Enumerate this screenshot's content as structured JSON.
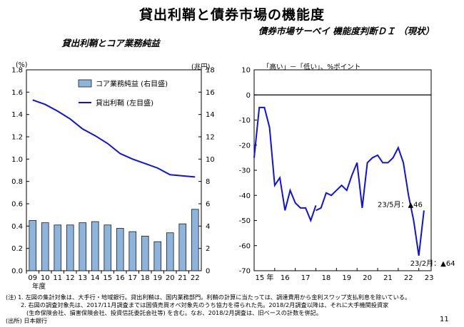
{
  "page": {
    "title": "貸出利鞘と債券市場の機能度",
    "page_number": "11",
    "notes": [
      "(注) 1. 左図の集計対象は、大手行・地域銀行。貸出利鞘は、国内業務部門。利鞘の計算に当たっては、調達費用から金利スワップ支払利息を除いている。",
      "2. 右図の調査対象先は、2017/11月調査までは国債売買オペ対象先のうち協力を得られた先。2018/2月調査以降は、それに大手機関投資家",
      "(生命保険会社、損害保険会社、投資信託委託会社等) を含む。なお、2018/2月調査は、旧ベースの計数を併記。",
      "(出所) 日本銀行"
    ]
  },
  "chart_data": [
    {
      "type": "bar+line",
      "title": "貸出利鞘とコア業務純益",
      "left_unit": "(%)",
      "right_unit": "(兆円)",
      "xlabel": "年度",
      "categories": [
        "09",
        "10",
        "11",
        "12",
        "13",
        "14",
        "15",
        "16",
        "17",
        "18",
        "19",
        "20",
        "21",
        "22"
      ],
      "yticks_left": [
        "0.0",
        "0.2",
        "0.4",
        "0.6",
        "0.8",
        "1.0",
        "1.2",
        "1.4",
        "1.6",
        "1.8"
      ],
      "yticks_right": [
        "0",
        "2",
        "4",
        "6",
        "8",
        "10",
        "12",
        "14",
        "16",
        "18"
      ],
      "ylim_left": [
        0,
        1.8
      ],
      "ylim_right": [
        0,
        18
      ],
      "legend": {
        "bar": "コア業務純益 (右目盛)",
        "line": "貸出利鞘 (左目盛)"
      },
      "series": [
        {
          "name": "コア業務純益 (右目盛)",
          "axis": "right",
          "kind": "bar",
          "color": "#8db4dc",
          "values": [
            4.5,
            4.3,
            4.1,
            4.1,
            4.3,
            4.4,
            4.1,
            3.8,
            3.5,
            3.1,
            2.6,
            3.4,
            4.2,
            5.5
          ]
        },
        {
          "name": "貸出利鞘 (左目盛)",
          "axis": "left",
          "kind": "line",
          "color": "#1010e6",
          "values": [
            1.53,
            1.49,
            1.43,
            1.36,
            1.27,
            1.21,
            1.14,
            1.05,
            1.0,
            0.96,
            0.92,
            0.86,
            0.85,
            0.84
          ]
        }
      ]
    },
    {
      "type": "line",
      "title": "債券市場サーベイ 機能度判断ＤＩ （現状）",
      "unit_label": "「高い」－「低い」、%ポイント",
      "ylim": [
        -70,
        10
      ],
      "yticks": [
        "10",
        "0",
        "-10",
        "-20",
        "-30",
        "-40",
        "-50",
        "-60",
        "-70"
      ],
      "xticks": [
        "15 年",
        "16",
        "17",
        "18",
        "19",
        "20",
        "21",
        "22",
        "23"
      ],
      "annotations": [
        {
          "text": "23/5月：▲46"
        },
        {
          "text": "23/2月：▲64"
        }
      ],
      "series": [
        {
          "name": "機能度判断DI",
          "color": "#1010e6",
          "segments": [
            [
              [
                2015.0,
                -25
              ],
              [
                2015.25,
                -5
              ],
              [
                2015.5,
                -5
              ],
              [
                2015.75,
                -13
              ],
              [
                2016.0,
                -36
              ],
              [
                2016.25,
                -33
              ],
              [
                2016.5,
                -46
              ],
              [
                2016.75,
                -38
              ],
              [
                2017.0,
                -43
              ],
              [
                2017.25,
                -45
              ],
              [
                2017.5,
                -45
              ],
              [
                2017.75,
                -50
              ],
              [
                2018.0,
                -44
              ]
            ],
            [
              [
                2018.0,
                -46
              ],
              [
                2018.25,
                -45
              ],
              [
                2018.5,
                -39
              ],
              [
                2018.75,
                -40
              ],
              [
                2019.0,
                -38
              ],
              [
                2019.25,
                -36
              ],
              [
                2019.5,
                -38
              ],
              [
                2019.75,
                -32
              ],
              [
                2020.0,
                -27
              ],
              [
                2020.25,
                -45
              ],
              [
                2020.5,
                -27
              ],
              [
                2020.75,
                -25
              ],
              [
                2021.0,
                -24
              ],
              [
                2021.25,
                -27
              ],
              [
                2021.5,
                -27
              ],
              [
                2021.75,
                -25
              ],
              [
                2022.0,
                -21
              ],
              [
                2022.25,
                -27
              ],
              [
                2022.5,
                -40
              ],
              [
                2022.75,
                -50
              ],
              [
                2023.0,
                -64
              ],
              [
                2023.25,
                -46
              ]
            ]
          ]
        }
      ]
    }
  ]
}
